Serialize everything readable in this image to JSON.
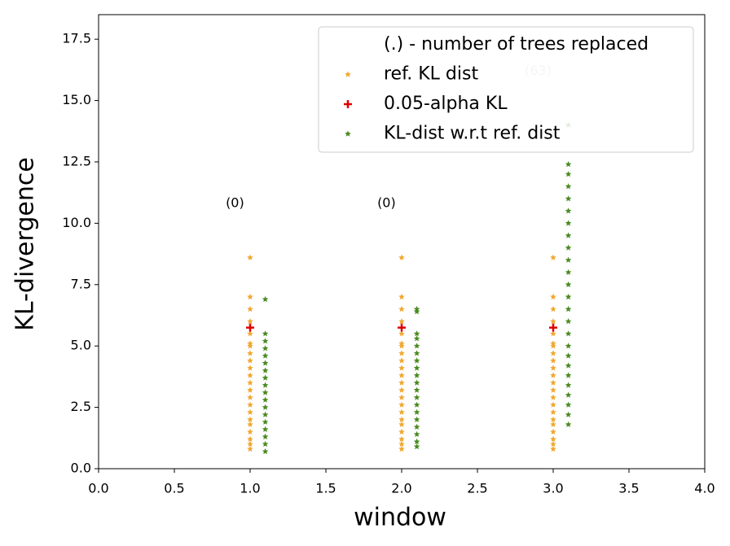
{
  "chart_data": {
    "type": "scatter",
    "xlabel": "window",
    "ylabel": "KL-divergence",
    "xlim": [
      0,
      4
    ],
    "ylim": [
      0,
      18.5
    ],
    "xticks": [
      {
        "value": 0,
        "label": "0.0"
      },
      {
        "value": 0.5,
        "label": "0.5"
      },
      {
        "value": 1,
        "label": "1.0"
      },
      {
        "value": 1.5,
        "label": "1.5"
      },
      {
        "value": 2,
        "label": "2.0"
      },
      {
        "value": 2.5,
        "label": "2.5"
      },
      {
        "value": 3,
        "label": "3.0"
      },
      {
        "value": 3.5,
        "label": "3.5"
      },
      {
        "value": 4,
        "label": "4.0"
      }
    ],
    "yticks": [
      {
        "value": 0,
        "label": "0.0"
      },
      2.5,
      {
        "value": 5,
        "label": "5.0"
      },
      7.5,
      {
        "value": 10,
        "label": "10.0"
      },
      12.5,
      {
        "value": 15,
        "label": "15.0"
      },
      17.5
    ],
    "grid": false,
    "legend": "upper right",
    "legend_title": "(.) - number of trees replaced",
    "series": [
      {
        "name": "ref. KL dist",
        "color": "#f0a830",
        "marker": "star",
        "x": [
          1,
          1,
          1,
          1,
          1,
          1,
          1,
          1,
          1,
          1,
          1,
          1,
          1,
          1,
          1,
          1,
          1,
          1,
          1,
          1,
          1,
          1,
          2,
          2,
          2,
          2,
          2,
          2,
          2,
          2,
          2,
          2,
          2,
          2,
          2,
          2,
          2,
          2,
          2,
          2,
          2,
          2,
          2,
          2,
          3,
          3,
          3,
          3,
          3,
          3,
          3,
          3,
          3,
          3,
          3,
          3,
          3,
          3,
          3,
          3,
          3,
          3,
          3,
          3,
          3,
          3
        ],
        "y": [
          0.8,
          1.0,
          1.2,
          1.5,
          1.8,
          2.0,
          2.3,
          2.6,
          2.9,
          3.2,
          3.5,
          3.8,
          4.1,
          4.4,
          4.7,
          5.0,
          5.1,
          5.5,
          6.0,
          6.5,
          7.0,
          8.6,
          0.8,
          1.0,
          1.2,
          1.5,
          1.8,
          2.0,
          2.3,
          2.6,
          2.9,
          3.2,
          3.5,
          3.8,
          4.1,
          4.4,
          4.7,
          5.0,
          5.1,
          5.5,
          6.0,
          6.5,
          7.0,
          8.6,
          0.8,
          1.0,
          1.2,
          1.5,
          1.8,
          2.0,
          2.3,
          2.6,
          2.9,
          3.2,
          3.5,
          3.8,
          4.1,
          4.4,
          4.7,
          5.0,
          5.1,
          5.5,
          6.0,
          6.5,
          7.0,
          8.6
        ]
      },
      {
        "name": "0.05-alpha KL",
        "color": "#e00000",
        "marker": "plus",
        "x": [
          1,
          2,
          3
        ],
        "y": [
          5.75,
          5.75,
          5.75
        ]
      },
      {
        "name": "KL-dist w.r.t ref. dist",
        "color": "#4a8a20",
        "marker": "star",
        "x": [
          1.1,
          1.1,
          1.1,
          1.1,
          1.1,
          1.1,
          1.1,
          1.1,
          1.1,
          1.1,
          1.1,
          1.1,
          1.1,
          1.1,
          1.1,
          1.1,
          1.1,
          1.1,
          2.1,
          2.1,
          2.1,
          2.1,
          2.1,
          2.1,
          2.1,
          2.1,
          2.1,
          2.1,
          2.1,
          2.1,
          2.1,
          2.1,
          2.1,
          2.1,
          2.1,
          2.1,
          2.1,
          3.1,
          3.1,
          3.1,
          3.1,
          3.1,
          3.1,
          3.1,
          3.1,
          3.1,
          3.1,
          3.1,
          3.1,
          3.1,
          3.1,
          3.1,
          3.1,
          3.1,
          3.1,
          3.1,
          3.1,
          3.1,
          3.1,
          3.1,
          3.1,
          3.1
        ],
        "y": [
          0.7,
          1.0,
          1.3,
          1.6,
          1.9,
          2.2,
          2.5,
          2.8,
          3.1,
          3.4,
          3.7,
          4.0,
          4.3,
          4.6,
          4.9,
          5.2,
          5.5,
          6.9,
          0.9,
          1.1,
          1.4,
          1.7,
          2.0,
          2.3,
          2.6,
          2.9,
          3.2,
          3.5,
          3.8,
          4.1,
          4.4,
          4.7,
          5.0,
          5.3,
          5.5,
          6.4,
          6.5,
          1.8,
          2.2,
          2.6,
          3.0,
          3.4,
          3.8,
          4.2,
          4.6,
          5.0,
          5.5,
          6.0,
          6.5,
          7.0,
          7.5,
          8.0,
          8.5,
          9.0,
          9.5,
          10.0,
          10.5,
          11.0,
          11.5,
          12.0,
          12.4,
          14.0
        ]
      }
    ],
    "annotations": [
      {
        "text": "(0)",
        "x": 0.9,
        "y": 10.8,
        "color": "#000000"
      },
      {
        "text": "(0)",
        "x": 1.9,
        "y": 10.8,
        "color": "#000000"
      },
      {
        "text": "(63)",
        "x": 2.9,
        "y": 16.2,
        "color": "#bbbbbb"
      }
    ]
  }
}
